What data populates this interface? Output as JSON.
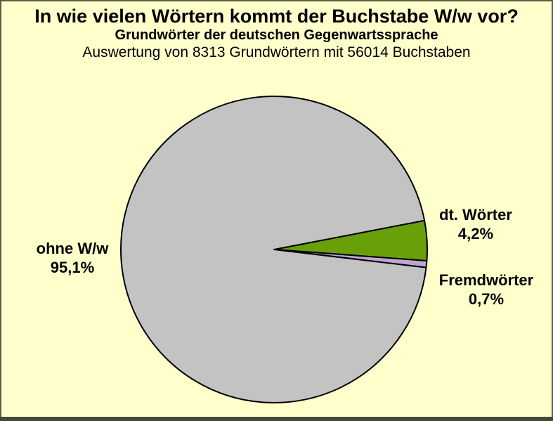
{
  "chart_data": {
    "type": "pie",
    "title": "In wie vielen Wörtern kommt der Buchstabe W/w vor?",
    "subtitle": "Grundwörter der deutschen Gegenwartssprache",
    "annotation": "Auswertung von 8313 Grundwörtern mit 56014 Buchstaben",
    "unit": "percent",
    "total_grundwoerter": "8313",
    "total_buchstaben": "56014",
    "slices": [
      {
        "label": "dt. Wörter",
        "value": 4.2,
        "value_label": "4,2%",
        "color": "#69A00A"
      },
      {
        "label": "Fremdwörter",
        "value": 0.7,
        "value_label": "0,7%",
        "color": "#BCA6D2"
      },
      {
        "label": "ohne W/w",
        "value": 95.1,
        "value_label": "95,1%",
        "color": "#C3C3C3"
      }
    ],
    "start_angle_deg": 10.9,
    "direction": "clockwise",
    "outline_color": "#000000",
    "outline_width": 2,
    "legend_position": "labels-beside-slices"
  },
  "page_colors": {
    "background": "#FFFFCC",
    "edge_border": "#5B5B45",
    "bottom_bar": "#47473A"
  }
}
